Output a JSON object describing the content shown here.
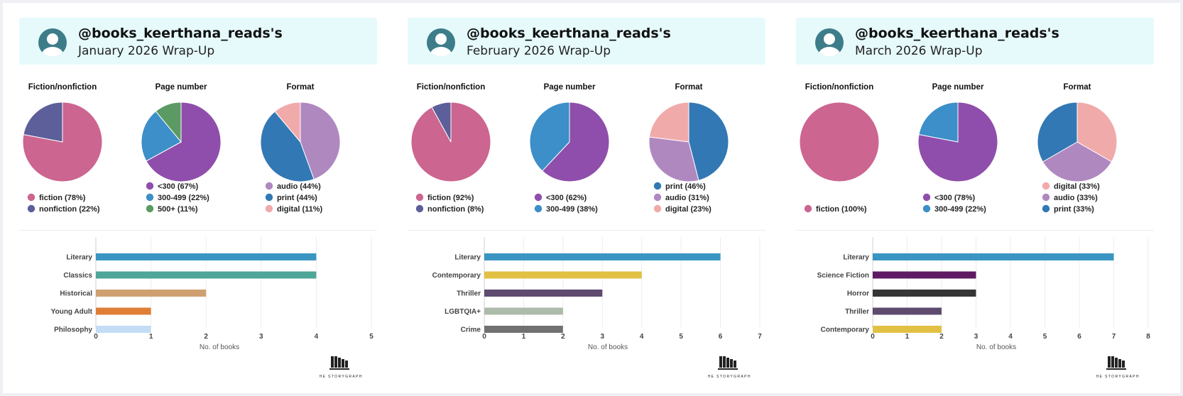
{
  "colors": {
    "fiction": "#cc6590",
    "nonfiction": "#5d5f9a",
    "lt300": "#8f4eab",
    "p300_499": "#3c8fc8",
    "p500plus": "#5b9b63",
    "audio": "#b088c0",
    "print": "#3278b4",
    "digital": "#f1aaaa"
  },
  "logo_text": "THE STORYGRAPH",
  "chart_data": [
    {
      "month": "January",
      "header": {
        "handle": "@books_keerthana_reads's",
        "subtitle": "January 2026 Wrap-Up"
      },
      "pies": [
        {
          "type": "pie",
          "title": "Fiction/nonfiction",
          "slices": [
            {
              "label": "fiction (78%)",
              "value": 78,
              "color": "#cc6590"
            },
            {
              "label": "nonfiction (22%)",
              "value": 22,
              "color": "#5d5f9a"
            }
          ]
        },
        {
          "type": "pie",
          "title": "Page number",
          "slices": [
            {
              "label": "<300 (67%)",
              "value": 67,
              "color": "#8f4eab"
            },
            {
              "label": "300-499 (22%)",
              "value": 22,
              "color": "#3c8fc8"
            },
            {
              "label": "500+ (11%)",
              "value": 11,
              "color": "#5b9b63"
            }
          ]
        },
        {
          "type": "pie",
          "title": "Format",
          "slices": [
            {
              "label": "audio (44%)",
              "value": 44,
              "color": "#b088c0"
            },
            {
              "label": "print (44%)",
              "value": 44,
              "color": "#3278b4"
            },
            {
              "label": "digital (11%)",
              "value": 11,
              "color": "#f1aaaa"
            }
          ]
        }
      ],
      "bar": {
        "type": "bar",
        "xlabel": "No. of books",
        "xlim": [
          0,
          5
        ],
        "ticks": [
          0,
          1,
          2,
          3,
          4,
          5
        ],
        "categories": [
          "Literary",
          "Classics",
          "Historical",
          "Young Adult",
          "Philosophy"
        ],
        "values": [
          4,
          4,
          2,
          1,
          1
        ],
        "colors": [
          "#3a95c2",
          "#4ea698",
          "#cfa06f",
          "#e07e35",
          "#c2ddf5"
        ]
      }
    },
    {
      "month": "February",
      "header": {
        "handle": "@books_keerthana_reads's",
        "subtitle": "February 2026 Wrap-Up"
      },
      "pies": [
        {
          "type": "pie",
          "title": "Fiction/nonfiction",
          "slices": [
            {
              "label": "fiction (92%)",
              "value": 92,
              "color": "#cc6590"
            },
            {
              "label": "nonfiction (8%)",
              "value": 8,
              "color": "#5d5f9a"
            }
          ]
        },
        {
          "type": "pie",
          "title": "Page number",
          "slices": [
            {
              "label": "<300 (62%)",
              "value": 62,
              "color": "#8f4eab"
            },
            {
              "label": "300-499 (38%)",
              "value": 38,
              "color": "#3c8fc8"
            }
          ]
        },
        {
          "type": "pie",
          "title": "Format",
          "slices": [
            {
              "label": "print (46%)",
              "value": 46,
              "color": "#3278b4"
            },
            {
              "label": "audio (31%)",
              "value": 31,
              "color": "#b088c0"
            },
            {
              "label": "digital (23%)",
              "value": 23,
              "color": "#f1aaaa"
            }
          ]
        }
      ],
      "bar": {
        "type": "bar",
        "xlabel": "No. of books",
        "xlim": [
          0,
          7
        ],
        "ticks": [
          0,
          1,
          2,
          3,
          4,
          5,
          6,
          7
        ],
        "categories": [
          "Literary",
          "Contemporary",
          "Thriller",
          "LGBTQIA+",
          "Crime"
        ],
        "values": [
          6,
          4,
          3,
          2,
          2
        ],
        "colors": [
          "#3a95c2",
          "#e2c043",
          "#5e4b6e",
          "#adbcaa",
          "#717171"
        ]
      }
    },
    {
      "month": "March",
      "header": {
        "handle": "@books_keerthana_reads's",
        "subtitle": "March 2026 Wrap-Up"
      },
      "pies": [
        {
          "type": "pie",
          "title": "Fiction/nonfiction",
          "slices": [
            {
              "label": "fiction (100%)",
              "value": 100,
              "color": "#cc6590"
            }
          ]
        },
        {
          "type": "pie",
          "title": "Page number",
          "slices": [
            {
              "label": "<300 (78%)",
              "value": 78,
              "color": "#8f4eab"
            },
            {
              "label": "300-499 (22%)",
              "value": 22,
              "color": "#3c8fc8"
            }
          ]
        },
        {
          "type": "pie",
          "title": "Format",
          "slices": [
            {
              "label": "digital (33%)",
              "value": 33,
              "color": "#f1aaaa"
            },
            {
              "label": "audio (33%)",
              "value": 33,
              "color": "#b088c0"
            },
            {
              "label": "print (33%)",
              "value": 33,
              "color": "#3278b4"
            }
          ]
        }
      ],
      "bar": {
        "type": "bar",
        "xlabel": "No. of books",
        "xlim": [
          0,
          8
        ],
        "ticks": [
          0,
          1,
          2,
          3,
          4,
          5,
          6,
          7,
          8
        ],
        "categories": [
          "Literary",
          "Science Fiction",
          "Horror",
          "Thriller",
          "Contemporary"
        ],
        "values": [
          7,
          3,
          3,
          2,
          2
        ],
        "colors": [
          "#3a95c2",
          "#5e1b63",
          "#363636",
          "#5e4b6e",
          "#e2c043"
        ]
      }
    }
  ]
}
